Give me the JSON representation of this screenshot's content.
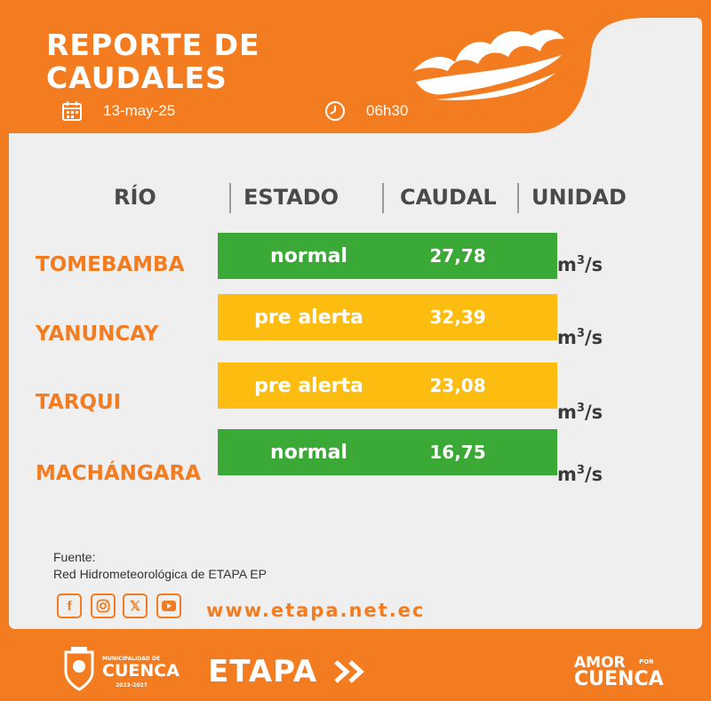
{
  "header": {
    "title_line1": "REPORTE DE",
    "title_line2": "CAUDALES",
    "date": "13-may-25",
    "time": "06h30"
  },
  "table": {
    "col_rio": "RÍO",
    "col_estado": "ESTADO",
    "col_caudal": "CAUDAL",
    "col_unidad": "UNIDAD",
    "rows": [
      {
        "river": "TOMEBAMBA",
        "estado": "normal",
        "caudal": "27,78",
        "unit_base": "m",
        "unit_exp": "3",
        "unit_tail": "/s",
        "color": "#3aa935"
      },
      {
        "river": "YANUNCAY",
        "estado": "pre alerta",
        "caudal": "32,39",
        "unit_base": "m",
        "unit_exp": "3",
        "unit_tail": "/s",
        "color": "#fdbd10"
      },
      {
        "river": "TARQUI",
        "estado": "pre alerta",
        "caudal": "23,08",
        "unit_base": "m",
        "unit_exp": "3",
        "unit_tail": "/s",
        "color": "#fdbd10"
      },
      {
        "river": "MACHÁNGARA",
        "estado": "normal",
        "caudal": "16,75",
        "unit_base": "m",
        "unit_exp": "3",
        "unit_tail": "/s",
        "color": "#3aa935"
      }
    ]
  },
  "footer": {
    "fuente_label": "Fuente:",
    "fuente_text": "Red Hidrometeorológica de ETAPA EP",
    "social_icons": [
      "facebook-icon",
      "instagram-icon",
      "x-icon",
      "youtube-icon"
    ],
    "website": "www.etapa.net.ec"
  },
  "logos": {
    "cuenca_pre": "MUNICIPALIDAD DE",
    "cuenca_main": "CUENCA",
    "cuenca_years": "2023-2027",
    "etapa": "ETAPA",
    "amor_line1": "AMOR",
    "amor_por": "POR",
    "amor_line2": "CUENCA"
  },
  "colors": {
    "brand_orange": "#f47c20",
    "panel_gray": "#efefef",
    "normal_green": "#3aa935",
    "alert_yellow": "#fdbd10"
  }
}
